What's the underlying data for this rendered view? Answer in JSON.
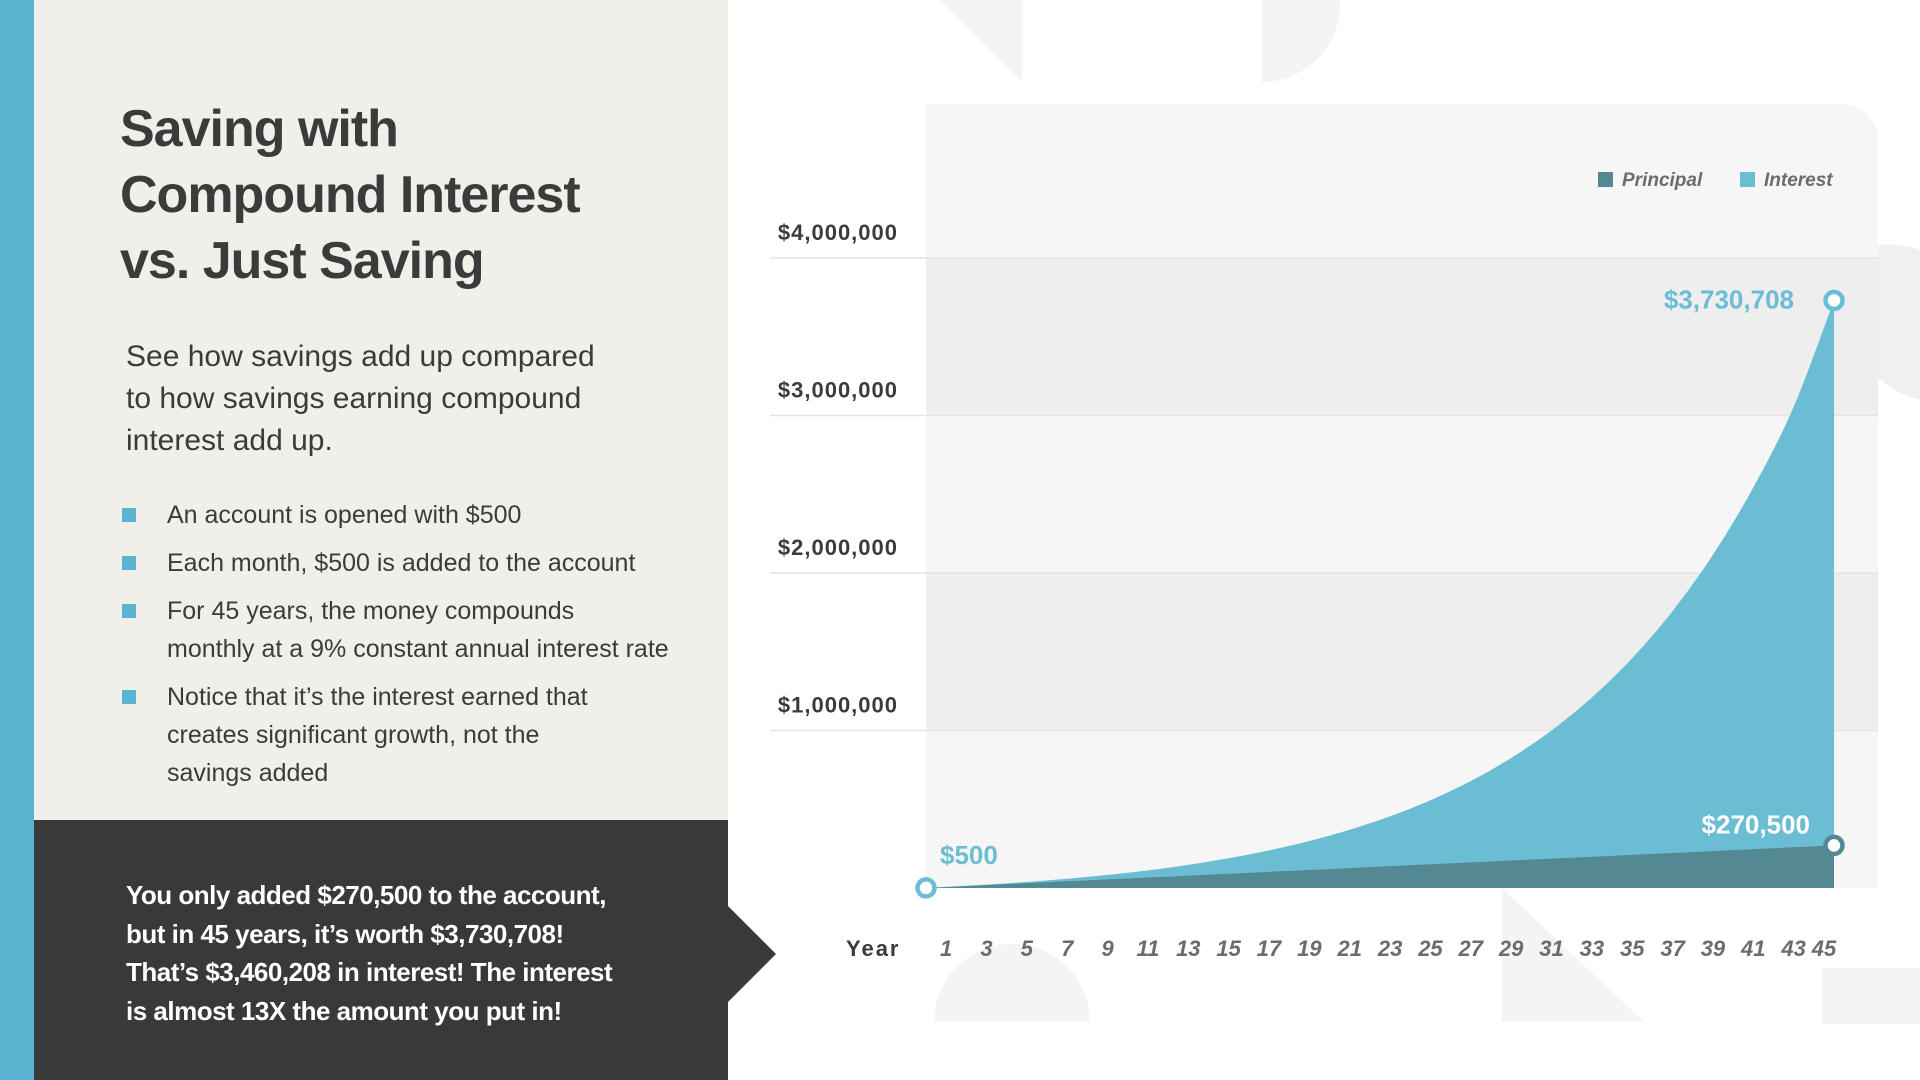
{
  "page": {
    "title_lines": [
      "Saving with",
      "Compound Interest",
      "vs. Just Saving"
    ],
    "subtitle_lines": [
      "See how savings add up compared",
      "to how savings earning compound",
      "interest add up."
    ],
    "bullets": [
      {
        "lines": [
          "An account is opened with $500"
        ]
      },
      {
        "lines": [
          "Each month, $500 is added to the account"
        ]
      },
      {
        "lines": [
          "For 45 years, the money compounds",
          "monthly at a 9% constant annual interest rate"
        ]
      },
      {
        "lines": [
          "Notice that it’s the interest earned that",
          "creates significant growth, not the",
          "savings added"
        ]
      }
    ],
    "callout_lines": [
      "You only added $270,500 to the account,",
      "but in 45 years, it’s worth $3,730,708!",
      "That’s $3,460,208 in interest! The interest",
      "is almost 13X the amount you put in!"
    ]
  },
  "colors": {
    "accent": "#5bb3d2",
    "principal": "#548892",
    "interest": "#6bbdd3",
    "dark_panel": "#383939",
    "light_panel": "#f1efea"
  },
  "chart_data": {
    "type": "area",
    "xlabel": "Year",
    "ylim": [
      0,
      4000000
    ],
    "yticks": [
      {
        "value": 4000000,
        "label": "$4,000,000"
      },
      {
        "value": 3000000,
        "label": "$3,000,000"
      },
      {
        "value": 2000000,
        "label": "$2,000,000"
      },
      {
        "value": 1000000,
        "label": "$1,000,000"
      }
    ],
    "xticks": [
      "1",
      "3",
      "5",
      "7",
      "9",
      "11",
      "13",
      "15",
      "17",
      "19",
      "21",
      "23",
      "25",
      "27",
      "29",
      "31",
      "33",
      "35",
      "37",
      "39",
      "41",
      "43",
      "45"
    ],
    "x": [
      0,
      1,
      3,
      5,
      7,
      9,
      11,
      13,
      15,
      17,
      19,
      21,
      23,
      25,
      27,
      29,
      31,
      33,
      35,
      37,
      39,
      41,
      43,
      45
    ],
    "series": [
      {
        "name": "Principal",
        "values": [
          500,
          6500,
          18500,
          30500,
          42500,
          54500,
          66500,
          78500,
          90500,
          102500,
          114500,
          126500,
          138500,
          150500,
          162500,
          174500,
          186500,
          198500,
          210500,
          222500,
          234500,
          246500,
          258500,
          270500
        ]
      },
      {
        "name": "Interest",
        "values": [
          500,
          6776,
          21123,
          38215,
          58633,
          83030,
          112200,
          147100,
          188800,
          238700,
          298400,
          369800,
          455200,
          557300,
          679500,
          825600,
          1000300,
          1209300,
          1459200,
          1758100,
          2115600,
          2543200,
          3054600,
          3730708
        ]
      }
    ],
    "legend": {
      "position": "top-right",
      "items": [
        "Principal",
        "Interest"
      ]
    },
    "annotations": [
      {
        "label": "$500",
        "x": 0,
        "y": 500,
        "series": "Interest"
      },
      {
        "label": "$3,730,708",
        "x": 45,
        "y": 3730708,
        "series": "Interest"
      },
      {
        "label": "$270,500",
        "x": 45,
        "y": 270500,
        "series": "Principal"
      }
    ],
    "grid": true
  }
}
